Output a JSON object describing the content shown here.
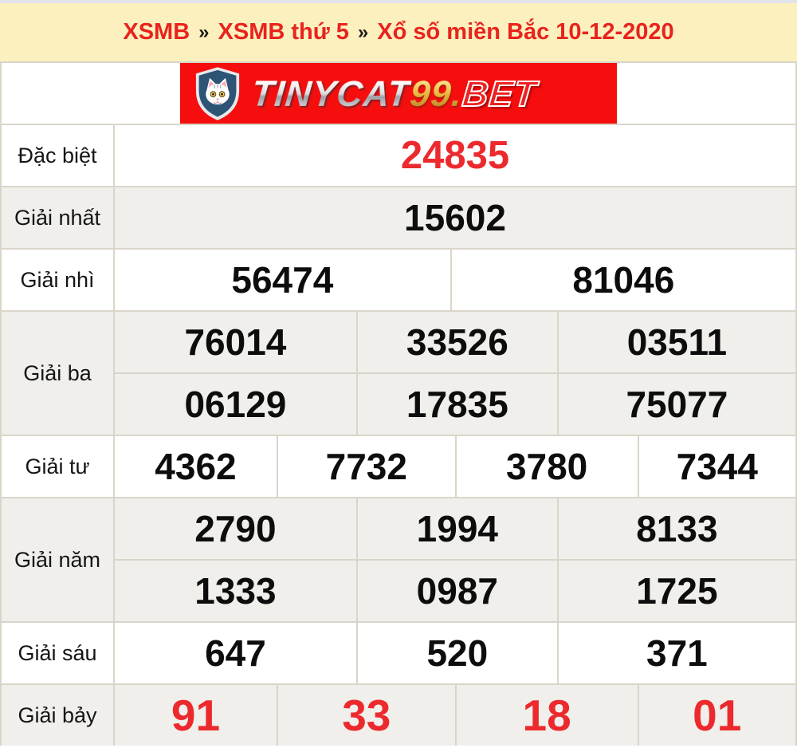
{
  "breadcrumb": {
    "separator": "»",
    "items": [
      "XSMB",
      "XSMB thứ 5",
      "Xổ số miền Bắc 10-12-2020"
    ]
  },
  "logo": {
    "icon": "cat-shield-icon",
    "brand": "TINYCAT",
    "number": "99",
    "dot": ".",
    "tld": "BET"
  },
  "colors": {
    "accent_red": "#EC2A2E",
    "breadcrumb_red": "#E8231D",
    "header_bg": "#FCF0BE",
    "alt_row_bg": "#F0EFEB",
    "border": "#D9D5C9",
    "logo_bg": "#F60E0E",
    "logo_gold": "#E7B93F",
    "shield_navy": "#2D5475"
  },
  "results": {
    "rows": [
      {
        "key": "dac-biet",
        "label": "Đặc biệt",
        "style": "special",
        "groups": [
          [
            "24835"
          ]
        ]
      },
      {
        "key": "giai-nhat",
        "label": "Giải nhất",
        "style": "",
        "groups": [
          [
            "15602"
          ]
        ]
      },
      {
        "key": "giai-nhi",
        "label": "Giải nhì",
        "style": "",
        "groups": [
          [
            "56474",
            "81046"
          ]
        ]
      },
      {
        "key": "giai-ba",
        "label": "Giải ba",
        "style": "",
        "groups": [
          [
            "76014",
            "33526",
            "03511"
          ],
          [
            "06129",
            "17835",
            "75077"
          ]
        ]
      },
      {
        "key": "giai-tu",
        "label": "Giải tư",
        "style": "",
        "groups": [
          [
            "4362",
            "7732",
            "3780",
            "7344"
          ]
        ]
      },
      {
        "key": "giai-nam",
        "label": "Giải năm",
        "style": "",
        "groups": [
          [
            "2790",
            "1994",
            "8133"
          ],
          [
            "1333",
            "0987",
            "1725"
          ]
        ]
      },
      {
        "key": "giai-sau",
        "label": "Giải sáu",
        "style": "",
        "groups": [
          [
            "647",
            "520",
            "371"
          ]
        ]
      },
      {
        "key": "giai-bay",
        "label": "Giải bảy",
        "style": "red7",
        "groups": [
          [
            "91",
            "33",
            "18",
            "01"
          ]
        ]
      }
    ]
  }
}
